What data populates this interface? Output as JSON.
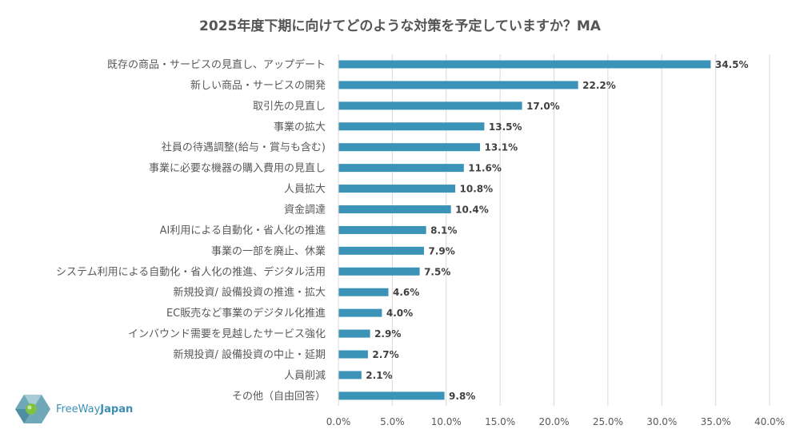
{
  "chart_data": {
    "type": "bar",
    "orientation": "horizontal",
    "title": "2025年度下期に向けてどのような対策を予定していますか？MA",
    "categories": [
      "既存の商品・サービスの見直し、アップデート",
      "新しい商品・サービスの開発",
      "取引先の見直し",
      "事業の拡大",
      "社員の待遇調整(給与・賞与も含む)",
      "事業に必要な機器の購入費用の見直し",
      "人員拡大",
      "資金調達",
      "AI利用による自動化・省人化の推進",
      "事業の一部を廃止、休業",
      "システム利用による自動化・省人化の推進、デジタル活用",
      "新規投資/ 設備投資の推進・拡大",
      "EC販売など事業のデジタル化推進",
      "インバウンド需要を見越したサービス強化",
      "新規投資/ 設備投資の中止・延期",
      "人員削減",
      "その他（自由回答）"
    ],
    "values": [
      34.5,
      22.2,
      17.0,
      13.5,
      13.1,
      11.6,
      10.8,
      10.4,
      8.1,
      7.9,
      7.5,
      4.6,
      4.0,
      2.9,
      2.7,
      2.1,
      9.8
    ],
    "value_labels": [
      "34.5%",
      "22.2%",
      "17.0%",
      "13.5%",
      "13.1%",
      "11.6%",
      "10.8%",
      "10.4%",
      "8.1%",
      "7.9%",
      "7.5%",
      "4.6%",
      "4.0%",
      "2.9%",
      "2.7%",
      "2.1%",
      "9.8%"
    ],
    "xlim": [
      0,
      40
    ],
    "xticks": [
      0,
      5,
      10,
      15,
      20,
      25,
      30,
      35,
      40
    ],
    "xtick_labels": [
      "0.0%",
      "5.0%",
      "10.0%",
      "15.0%",
      "20.0%",
      "25.0%",
      "30.0%",
      "35.0%",
      "40.0%"
    ],
    "grid": true,
    "bar_color": "#3b93b8"
  },
  "logo": {
    "name_part1": "FreeWay",
    "name_part2": "Japan"
  }
}
